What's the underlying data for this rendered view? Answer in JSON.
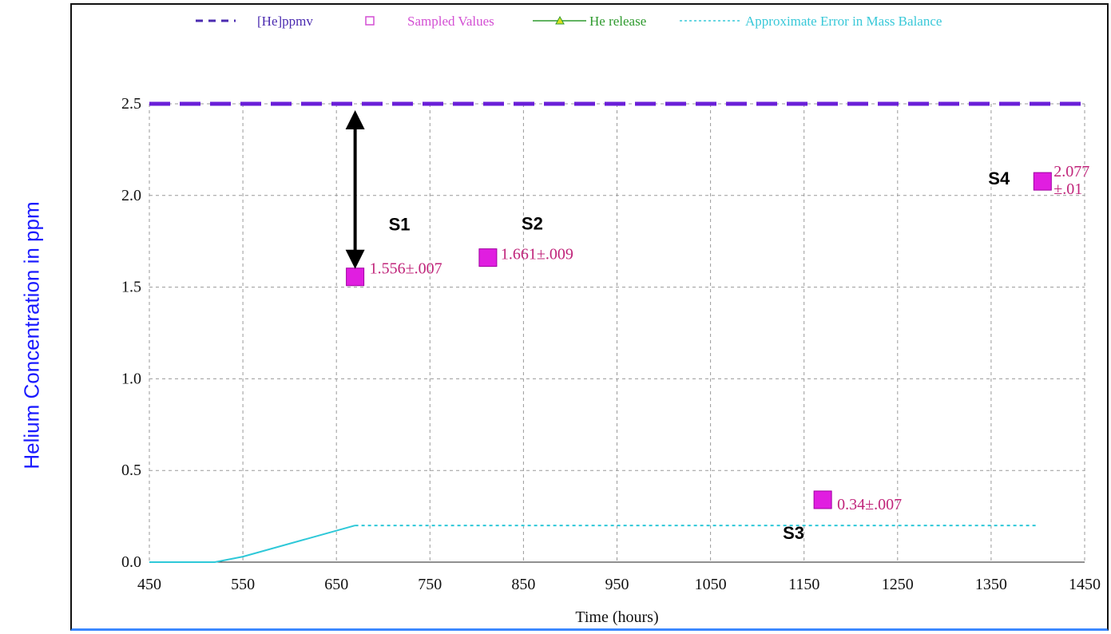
{
  "chart_data": {
    "type": "scatter",
    "ylabel": "Helium Concentration in ppm",
    "xlabel": "Time (hours)",
    "xlim": [
      450,
      1450
    ],
    "ylim": [
      0,
      2.5
    ],
    "x_ticks": [
      "450",
      "550",
      "650",
      "750",
      "850",
      "950",
      "1050",
      "1150",
      "1250",
      "1350",
      "1450"
    ],
    "y_ticks": [
      "0.0",
      "0.5",
      "1.0",
      "1.5",
      "2.0",
      "2.5"
    ],
    "legend_position": "top",
    "legend": [
      {
        "name": "[He]ppmv",
        "color": "#4b2bb0"
      },
      {
        "name": "Sampled Values",
        "color": "#d34fd3"
      },
      {
        "name": "He release",
        "color": "#2e9a2e"
      },
      {
        "name": "Approximate Error in Mass Balance",
        "color": "#38c8d8"
      }
    ],
    "series": [
      {
        "name": "[He]ppmv",
        "style": "dashed",
        "color": "#6a1fd8",
        "points": [
          [
            450,
            2.5
          ],
          [
            1450,
            2.5
          ]
        ]
      },
      {
        "name": "Approximate Error in Mass Balance",
        "style": "solid-then-dotted",
        "color": "#2ec8d8",
        "points": [
          [
            450,
            0.0
          ],
          [
            520,
            0.0
          ],
          [
            550,
            0.03
          ],
          [
            670,
            0.2
          ],
          [
            1400,
            0.2
          ]
        ]
      },
      {
        "name": "Sampled Values",
        "color": "#e01ee0",
        "points": [
          {
            "id": "S1",
            "x": 670,
            "y": 1.556,
            "label": "1.556±.007"
          },
          {
            "id": "S2",
            "x": 812,
            "y": 1.661,
            "label": "1.661±.009"
          },
          {
            "id": "S3",
            "x": 1170,
            "y": 0.34,
            "label": "0.34±.007"
          },
          {
            "id": "S4",
            "x": 1405,
            "y": 2.077,
            "label": "2.077\n±.01"
          }
        ]
      }
    ],
    "annotations": [
      "S1",
      "S2",
      "S3",
      "S4"
    ],
    "grid": true
  }
}
